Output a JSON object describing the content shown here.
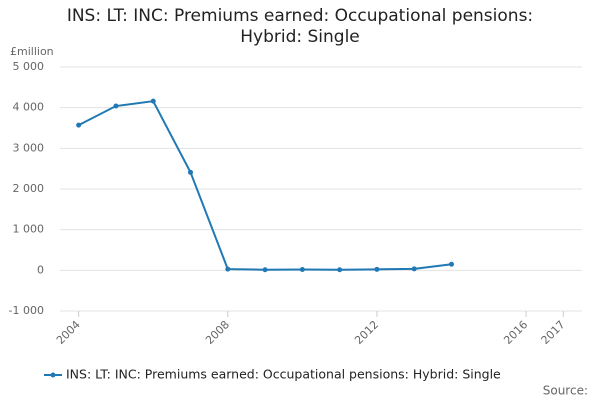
{
  "chart_data": {
    "type": "line",
    "title": "INS: LT: INC: Premiums earned: Occupational pensions: Hybrid: Single",
    "y_label": "£million",
    "x": [
      2004,
      2005,
      2006,
      2007,
      2008,
      2009,
      2010,
      2011,
      2012,
      2013,
      2014
    ],
    "series": [
      {
        "name": "INS: LT: INC: Premiums earned: Occupational pensions: Hybrid: Single",
        "color": "#2079b4",
        "values": [
          3570,
          4040,
          4160,
          2410,
          30,
          15,
          20,
          15,
          25,
          35,
          150
        ]
      }
    ],
    "xlim": [
      2003.5,
      2017.5
    ],
    "xticks": [
      2004,
      2008,
      2012,
      2016,
      2017
    ],
    "ylim": [
      -1000,
      5000
    ],
    "yticks": [
      {
        "value": -1000,
        "label": "-1 000"
      },
      0,
      {
        "value": 1000,
        "label": "1 000"
      },
      {
        "value": 2000,
        "label": "2 000"
      },
      {
        "value": 3000,
        "label": "3 000"
      },
      {
        "value": 4000,
        "label": "4 000"
      },
      {
        "value": 5000,
        "label": "5 000"
      }
    ],
    "grid": true,
    "source": "Source:"
  }
}
